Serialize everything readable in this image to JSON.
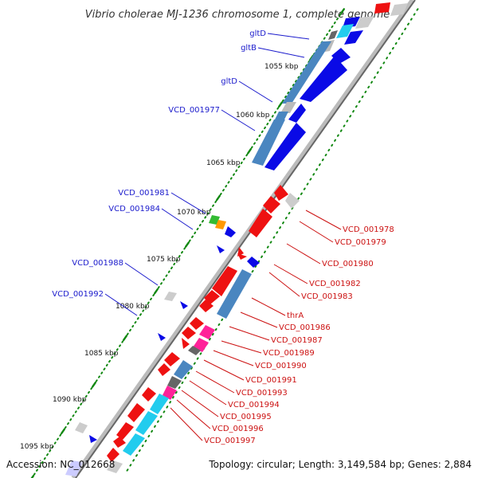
{
  "title": "Vibrio cholerae MJ-1236 chromosome 1, complete genome",
  "footer": {
    "accession": "Accession: NC_012668",
    "summary": "Topology: circular; Length: 3,149,584 bp; Genes: 2,884"
  },
  "ticks": [
    "1055 kbp",
    "1060 kbp",
    "1065 kbp",
    "1070 kbp",
    "1075 kbp",
    "1080 kbp",
    "1085 kbp",
    "1090 kbp",
    "1095 kbp"
  ],
  "labels_left": [
    "gltD",
    "gltB",
    "gltD",
    "VCD_001977",
    "VCD_001981",
    "VCD_001984",
    "VCD_001988",
    "VCD_001992"
  ],
  "labels_right": [
    "VCD_001978",
    "VCD_001979",
    "VCD_001980",
    "VCD_001982",
    "VCD_001983",
    "thrA",
    "VCD_001986",
    "VCD_001987",
    "VCD_001989",
    "VCD_001990",
    "VCD_001991",
    "VCD_001993",
    "VCD_001994",
    "VCD_001995",
    "VCD_001996",
    "VCD_001997"
  ],
  "colors": {
    "forward_cds": "#0a0ae6",
    "reverse_cds": "#ee1111",
    "rna_light_blue": "#22ccee",
    "steel_blue": "#4a86c0",
    "pink": "#ff2299",
    "gray": "#999999",
    "dark_gray": "#666666",
    "green": "#33bb33",
    "orange": "#ff9900",
    "tick_green": "#118811",
    "backbone": "#666666"
  }
}
